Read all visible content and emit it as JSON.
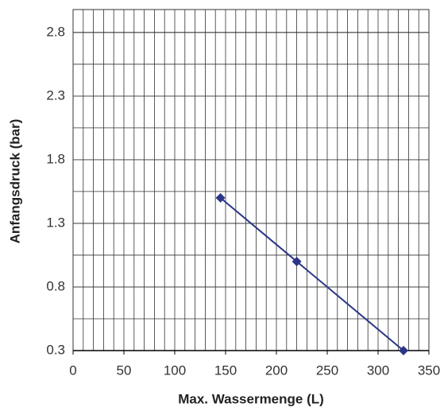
{
  "chart_data": {
    "type": "line",
    "x_label": "Max. Wassermenge (L)",
    "y_label": "Anfangsdruck (bar)",
    "x": [
      145,
      220,
      325
    ],
    "series": [
      {
        "name": null,
        "color": "#2b3686",
        "values": [
          1.5,
          1.0,
          0.3
        ]
      }
    ],
    "xlim": [
      0,
      350
    ],
    "xticks": [
      0,
      50,
      100,
      150,
      200,
      250,
      300,
      350
    ],
    "ylim": [
      0.3,
      2.98
    ],
    "yticks": [
      0.3,
      0.8,
      1.3,
      1.8,
      2.3,
      2.8
    ],
    "grid": true
  }
}
